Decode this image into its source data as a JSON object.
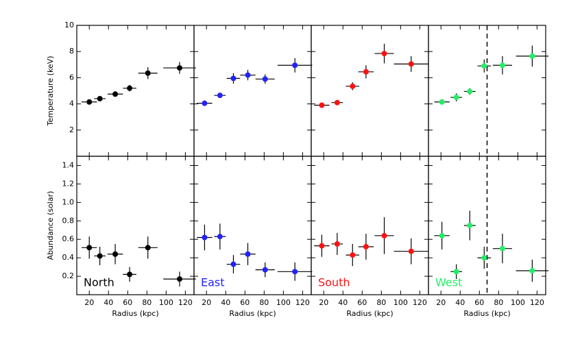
{
  "chart_data": [
    {
      "type": "scatter",
      "ylabel": "Temperature (keV)",
      "color": "#000000",
      "x": [
        20,
        31,
        47,
        62,
        81,
        114
      ],
      "xerr": [
        8,
        6,
        8,
        7,
        10,
        17
      ],
      "values": [
        4.15,
        4.4,
        4.75,
        5.2,
        6.35,
        6.75
      ],
      "yerr": [
        0.15,
        0.15,
        0.2,
        0.25,
        0.45,
        0.45
      ],
      "xlim": [
        7,
        129
      ],
      "ylim": [
        0,
        10
      ],
      "xticks": [
        20,
        40,
        60,
        80,
        100,
        120
      ],
      "yticks": [
        2,
        4,
        6,
        8,
        10
      ]
    },
    {
      "type": "scatter",
      "color": "#2222ff",
      "x": [
        18,
        34,
        48,
        63,
        81,
        112
      ],
      "xerr": [
        8,
        6,
        7,
        8,
        10,
        18
      ],
      "values": [
        4.05,
        4.65,
        5.95,
        6.2,
        5.9,
        6.95
      ],
      "yerr": [
        0.15,
        0.2,
        0.4,
        0.4,
        0.35,
        0.55
      ],
      "xlim": [
        7,
        129
      ],
      "ylim": [
        0,
        10
      ],
      "xticks": [
        20,
        40,
        60,
        80,
        100,
        120
      ],
      "yticks": [
        2,
        4,
        6,
        8,
        10
      ]
    },
    {
      "type": "scatter",
      "color": "#ff1111",
      "x": [
        18,
        34,
        50,
        64,
        83,
        111
      ],
      "xerr": [
        8,
        6,
        7,
        8,
        10,
        18
      ],
      "values": [
        3.9,
        4.1,
        5.35,
        6.45,
        7.85,
        7.05
      ],
      "yerr": [
        0.15,
        0.15,
        0.3,
        0.5,
        0.75,
        0.6
      ],
      "xlim": [
        7,
        129
      ],
      "ylim": [
        0,
        10
      ],
      "xticks": [
        20,
        40,
        60,
        80,
        100,
        120
      ],
      "yticks": [
        2,
        4,
        6,
        8,
        10
      ]
    },
    {
      "type": "scatter",
      "color": "#22ee66",
      "x": [
        21,
        36,
        50,
        65,
        84,
        115
      ],
      "xerr": [
        8,
        6,
        6,
        7,
        10,
        17
      ],
      "values": [
        4.15,
        4.5,
        4.95,
        6.9,
        6.95,
        7.65
      ],
      "yerr": [
        0.2,
        0.3,
        0.25,
        0.5,
        0.7,
        0.8
      ],
      "xlim": [
        7,
        129
      ],
      "ylim": [
        0,
        10
      ],
      "xticks": [
        20,
        40,
        60,
        80,
        100,
        120
      ],
      "yticks": [
        2,
        4,
        6,
        8,
        10
      ],
      "vline": 68
    },
    {
      "type": "scatter",
      "label": "North",
      "ylabel": "Abundance (solar)",
      "xlabel": "Radius (kpc)",
      "color": "#000000",
      "x": [
        20,
        31,
        47,
        62,
        81,
        114
      ],
      "xerr": [
        8,
        6,
        8,
        7,
        10,
        17
      ],
      "values": [
        0.51,
        0.42,
        0.44,
        0.22,
        0.51,
        0.17
      ],
      "yerr": [
        0.12,
        0.1,
        0.11,
        0.08,
        0.12,
        0.08
      ],
      "xlim": [
        7,
        129
      ],
      "ylim": [
        0,
        1.5
      ],
      "xticks": [
        20,
        40,
        60,
        80,
        100,
        120
      ],
      "yticks": [
        0.2,
        0.4,
        0.6,
        0.8,
        {
          "value": 1,
          "label": "1.0"
        },
        1.2,
        1.4
      ]
    },
    {
      "type": "scatter",
      "label": "East",
      "xlabel": "Radius (kpc)",
      "color": "#2222ff",
      "x": [
        18,
        34,
        48,
        63,
        81,
        112
      ],
      "xerr": [
        8,
        6,
        7,
        8,
        10,
        18
      ],
      "values": [
        0.62,
        0.63,
        0.33,
        0.44,
        0.27,
        0.25
      ],
      "yerr": [
        0.14,
        0.14,
        0.1,
        0.12,
        0.08,
        0.1
      ],
      "xlim": [
        7,
        129
      ],
      "ylim": [
        0,
        1.5
      ],
      "xticks": [
        20,
        40,
        60,
        80,
        100,
        120
      ],
      "yticks": [
        0.2,
        0.4,
        0.6,
        0.8,
        {
          "value": 1,
          "label": "1.0"
        },
        1.2,
        1.4
      ]
    },
    {
      "type": "scatter",
      "label": "South",
      "xlabel": "Radius (kpc)",
      "color": "#ff1111",
      "x": [
        18,
        34,
        50,
        64,
        83,
        111
      ],
      "xerr": [
        8,
        6,
        7,
        8,
        10,
        18
      ],
      "values": [
        0.53,
        0.55,
        0.43,
        0.52,
        0.64,
        0.47
      ],
      "yerr": [
        0.12,
        0.12,
        0.12,
        0.14,
        0.2,
        0.14
      ],
      "xlim": [
        7,
        129
      ],
      "ylim": [
        0,
        1.5
      ],
      "xticks": [
        20,
        40,
        60,
        80,
        100,
        120
      ],
      "yticks": [
        0.2,
        0.4,
        0.6,
        0.8,
        {
          "value": 1,
          "label": "1.0"
        },
        1.2,
        1.4
      ]
    },
    {
      "type": "scatter",
      "label": "West",
      "xlabel": "Radius (kpc)",
      "color": "#22ee66",
      "x": [
        21,
        36,
        50,
        65,
        84,
        115
      ],
      "xerr": [
        8,
        6,
        6,
        7,
        10,
        17
      ],
      "values": [
        0.64,
        0.25,
        0.75,
        0.4,
        0.5,
        0.26
      ],
      "yerr": [
        0.15,
        0.08,
        0.16,
        0.12,
        0.16,
        0.12
      ],
      "xlim": [
        7,
        129
      ],
      "ylim": [
        0,
        1.5
      ],
      "xticks": [
        20,
        40,
        60,
        80,
        100,
        120
      ],
      "yticks": [
        0.2,
        0.4,
        0.6,
        0.8,
        {
          "value": 1,
          "label": "1.0"
        },
        1.2,
        1.4
      ],
      "vline": 68
    }
  ]
}
